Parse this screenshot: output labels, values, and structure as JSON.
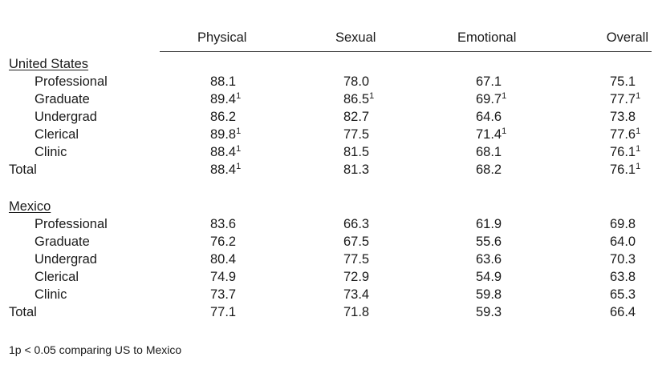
{
  "table": {
    "columns": [
      "Physical",
      "Sexual",
      "Emotional",
      "Overall"
    ],
    "groups": [
      {
        "name": "United States",
        "rows": [
          {
            "label": "Professional",
            "cells": [
              {
                "value": "88.1"
              },
              {
                "value": "78.0"
              },
              {
                "value": "67.1"
              },
              {
                "value": "75.1"
              }
            ]
          },
          {
            "label": "Graduate",
            "cells": [
              {
                "value": "89.4",
                "sup": "1"
              },
              {
                "value": "86.5",
                "sup": "1"
              },
              {
                "value": "69.7",
                "sup": "1"
              },
              {
                "value": "77.7",
                "sup": "1"
              }
            ]
          },
          {
            "label": "Undergrad",
            "cells": [
              {
                "value": "86.2"
              },
              {
                "value": "82.7"
              },
              {
                "value": "64.6"
              },
              {
                "value": "73.8"
              }
            ]
          },
          {
            "label": "Clerical",
            "cells": [
              {
                "value": "89.8",
                "sup": "1"
              },
              {
                "value": "77.5"
              },
              {
                "value": "71.4",
                "sup": "1"
              },
              {
                "value": "77.6",
                "sup": "1"
              }
            ]
          },
          {
            "label": "Clinic",
            "cells": [
              {
                "value": "88.4",
                "sup": "1"
              },
              {
                "value": "81.5"
              },
              {
                "value": "68.1"
              },
              {
                "value": "76.1",
                "sup": "1"
              }
            ]
          }
        ],
        "total": {
          "label": "Total",
          "cells": [
            {
              "value": "88.4",
              "sup": "1"
            },
            {
              "value": "81.3"
            },
            {
              "value": "68.2"
            },
            {
              "value": "76.1",
              "sup": "1"
            }
          ]
        }
      },
      {
        "name": "Mexico",
        "rows": [
          {
            "label": "Professional",
            "cells": [
              {
                "value": "83.6"
              },
              {
                "value": "66.3"
              },
              {
                "value": "61.9"
              },
              {
                "value": "69.8"
              }
            ]
          },
          {
            "label": "Graduate",
            "cells": [
              {
                "value": "76.2"
              },
              {
                "value": "67.5"
              },
              {
                "value": "55.6"
              },
              {
                "value": "64.0"
              }
            ]
          },
          {
            "label": "Undergrad",
            "cells": [
              {
                "value": "80.4"
              },
              {
                "value": "77.5"
              },
              {
                "value": "63.6"
              },
              {
                "value": "70.3"
              }
            ]
          },
          {
            "label": "Clerical",
            "cells": [
              {
                "value": "74.9"
              },
              {
                "value": "72.9"
              },
              {
                "value": "54.9"
              },
              {
                "value": "63.8"
              }
            ]
          },
          {
            "label": "Clinic",
            "cells": [
              {
                "value": "73.7"
              },
              {
                "value": "73.4"
              },
              {
                "value": "59.8"
              },
              {
                "value": "65.3"
              }
            ]
          }
        ],
        "total": {
          "label": "Total",
          "cells": [
            {
              "value": "77.1"
            },
            {
              "value": "71.8"
            },
            {
              "value": "59.3"
            },
            {
              "value": "66.4"
            }
          ]
        }
      }
    ],
    "footnote": "1p < 0.05 comparing US to Mexico"
  }
}
